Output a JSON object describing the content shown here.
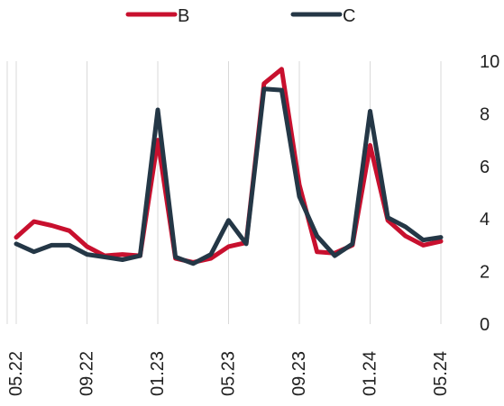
{
  "chart_data": {
    "type": "line",
    "x": [
      "05.22",
      "06.22",
      "07.22",
      "08.22",
      "09.22",
      "10.22",
      "11.22",
      "12.22",
      "01.23",
      "02.23",
      "03.23",
      "04.23",
      "05.23",
      "06.23",
      "07.23",
      "08.23",
      "09.23",
      "10.23",
      "11.23",
      "12.23",
      "01.24",
      "02.24",
      "03.24",
      "04.24",
      "05.24"
    ],
    "x_tick_labels": [
      "05.22",
      "09.22",
      "01.23",
      "05.23",
      "09.23",
      "01.24",
      "05.24"
    ],
    "y_ticks": [
      0,
      2,
      4,
      6,
      8,
      10
    ],
    "ylim": [
      0,
      10
    ],
    "grid": "vertical",
    "legend_position": "top",
    "y_axis_side": "right",
    "series": [
      {
        "name": "B",
        "color": "#c8102e",
        "values": [
          3.3,
          3.9,
          3.75,
          3.55,
          2.95,
          2.6,
          2.65,
          2.6,
          7.0,
          2.5,
          2.35,
          2.5,
          2.95,
          3.1,
          9.15,
          9.7,
          5.3,
          2.75,
          2.7,
          3.0,
          6.8,
          3.95,
          3.35,
          3.0,
          3.15
        ]
      },
      {
        "name": "C",
        "color": "#243746",
        "values": [
          3.05,
          2.75,
          3.0,
          3.0,
          2.65,
          2.55,
          2.45,
          2.6,
          8.15,
          2.55,
          2.3,
          2.65,
          3.95,
          3.05,
          8.95,
          8.9,
          4.85,
          3.35,
          2.6,
          3.05,
          8.1,
          4.05,
          3.7,
          3.2,
          3.3
        ]
      }
    ]
  }
}
